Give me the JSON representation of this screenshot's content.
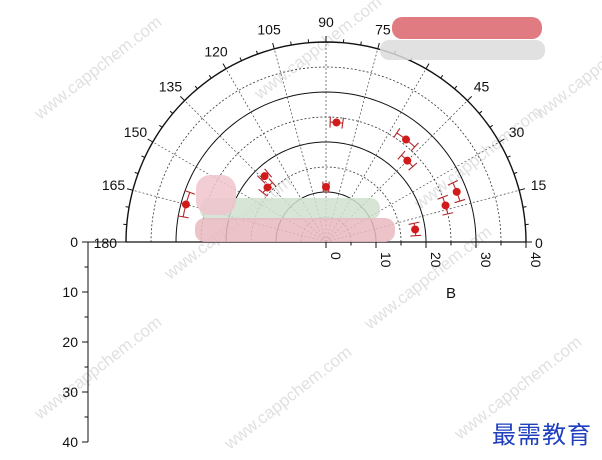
{
  "chart_data": {
    "type": "scatter",
    "subtype": "polar-half",
    "title": "",
    "angular_axis": {
      "range": [
        0,
        180
      ],
      "unit": "degrees",
      "major_ticks": [
        0,
        15,
        30,
        45,
        75,
        90,
        105,
        120,
        135,
        150,
        165,
        180
      ],
      "tick_labels": [
        "0",
        "15",
        "30",
        "45",
        "75",
        "90",
        "105",
        "120",
        "135",
        "150",
        "165",
        "180"
      ]
    },
    "radial_axis": {
      "range": [
        0,
        40
      ],
      "label": "B",
      "ticks": [
        0,
        10,
        20,
        30,
        40
      ],
      "tick_labels": [
        "0",
        "10",
        "20",
        "30",
        "40"
      ],
      "rings": [
        10,
        20,
        30,
        40
      ],
      "minor_rings": [
        5,
        15,
        25,
        35
      ]
    },
    "left_axis": {
      "range": [
        0,
        40
      ],
      "inverted": true,
      "ticks": [
        0,
        10,
        20,
        30,
        40
      ],
      "tick_labels": [
        "0",
        "10",
        "20",
        "30",
        "40"
      ]
    },
    "grid": true,
    "points": [
      {
        "theta": 8,
        "r": 18,
        "err_theta": 4
      },
      {
        "theta": 17,
        "r": 25,
        "err_theta": 4
      },
      {
        "theta": 21,
        "r": 28,
        "err_theta": 4
      },
      {
        "theta": 45,
        "r": 23,
        "err_theta": 4
      },
      {
        "theta": 52,
        "r": 26,
        "err_theta": 5
      },
      {
        "theta": 90,
        "r": 11,
        "err_theta": 3
      },
      {
        "theta": 85,
        "r": 24,
        "err_theta": 3
      },
      {
        "theta": 137,
        "r": 16,
        "err_theta": 5
      },
      {
        "theta": 133,
        "r": 18,
        "err_theta": 3
      },
      {
        "theta": 165,
        "r": 29,
        "err_theta": 5
      }
    ],
    "marker_color": "#d11a1a",
    "error_color": "#b3262b"
  },
  "watermark": {
    "text": "www.cappchem.com"
  },
  "logo": {
    "text": "最需教育"
  }
}
